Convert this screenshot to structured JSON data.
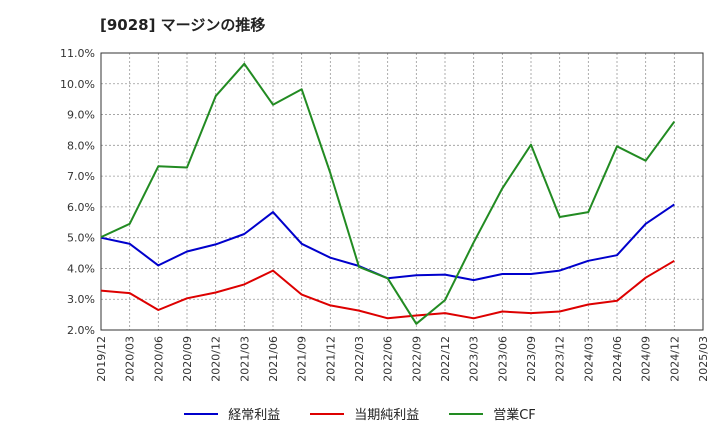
{
  "title": "[9028]  マージンの推移",
  "chart_data": {
    "type": "line",
    "title": "[9028]  マージンの推移",
    "x": [
      "2019/12",
      "2020/03",
      "2020/06",
      "2020/09",
      "2020/12",
      "2021/03",
      "2021/06",
      "2021/09",
      "2021/12",
      "2022/03",
      "2022/06",
      "2022/09",
      "2022/12",
      "2023/03",
      "2023/06",
      "2023/09",
      "2023/12",
      "2024/03",
      "2024/06",
      "2024/09",
      "2024/12",
      "2025/03"
    ],
    "ylim": [
      2.0,
      11.0
    ],
    "yticks": [
      "2.0%",
      "3.0%",
      "4.0%",
      "5.0%",
      "6.0%",
      "7.0%",
      "8.0%",
      "9.0%",
      "10.0%",
      "11.0%"
    ],
    "grid": true,
    "legend_position": "bottom",
    "series": [
      {
        "name": "経常利益",
        "color": "#0000cc",
        "values": [
          5.0,
          4.8,
          4.1,
          4.55,
          4.78,
          5.12,
          5.83,
          4.8,
          4.35,
          4.08,
          3.68,
          3.78,
          3.8,
          3.62,
          3.82,
          3.82,
          3.93,
          4.25,
          4.43,
          5.45,
          6.08,
          null
        ]
      },
      {
        "name": "当期純利益",
        "color": "#dd0000",
        "values": [
          3.28,
          3.2,
          2.65,
          3.03,
          3.22,
          3.48,
          3.93,
          3.15,
          2.8,
          2.63,
          2.38,
          2.47,
          2.55,
          2.38,
          2.6,
          2.55,
          2.6,
          2.83,
          2.95,
          3.7,
          4.25,
          null
        ]
      },
      {
        "name": "営業CF",
        "color": "#228b22",
        "values": [
          5.02,
          5.45,
          7.32,
          7.28,
          9.6,
          10.65,
          9.32,
          9.82,
          7.1,
          4.05,
          3.68,
          2.2,
          2.97,
          4.85,
          6.6,
          8.02,
          5.67,
          5.83,
          7.97,
          7.5,
          8.77,
          null
        ]
      }
    ]
  }
}
